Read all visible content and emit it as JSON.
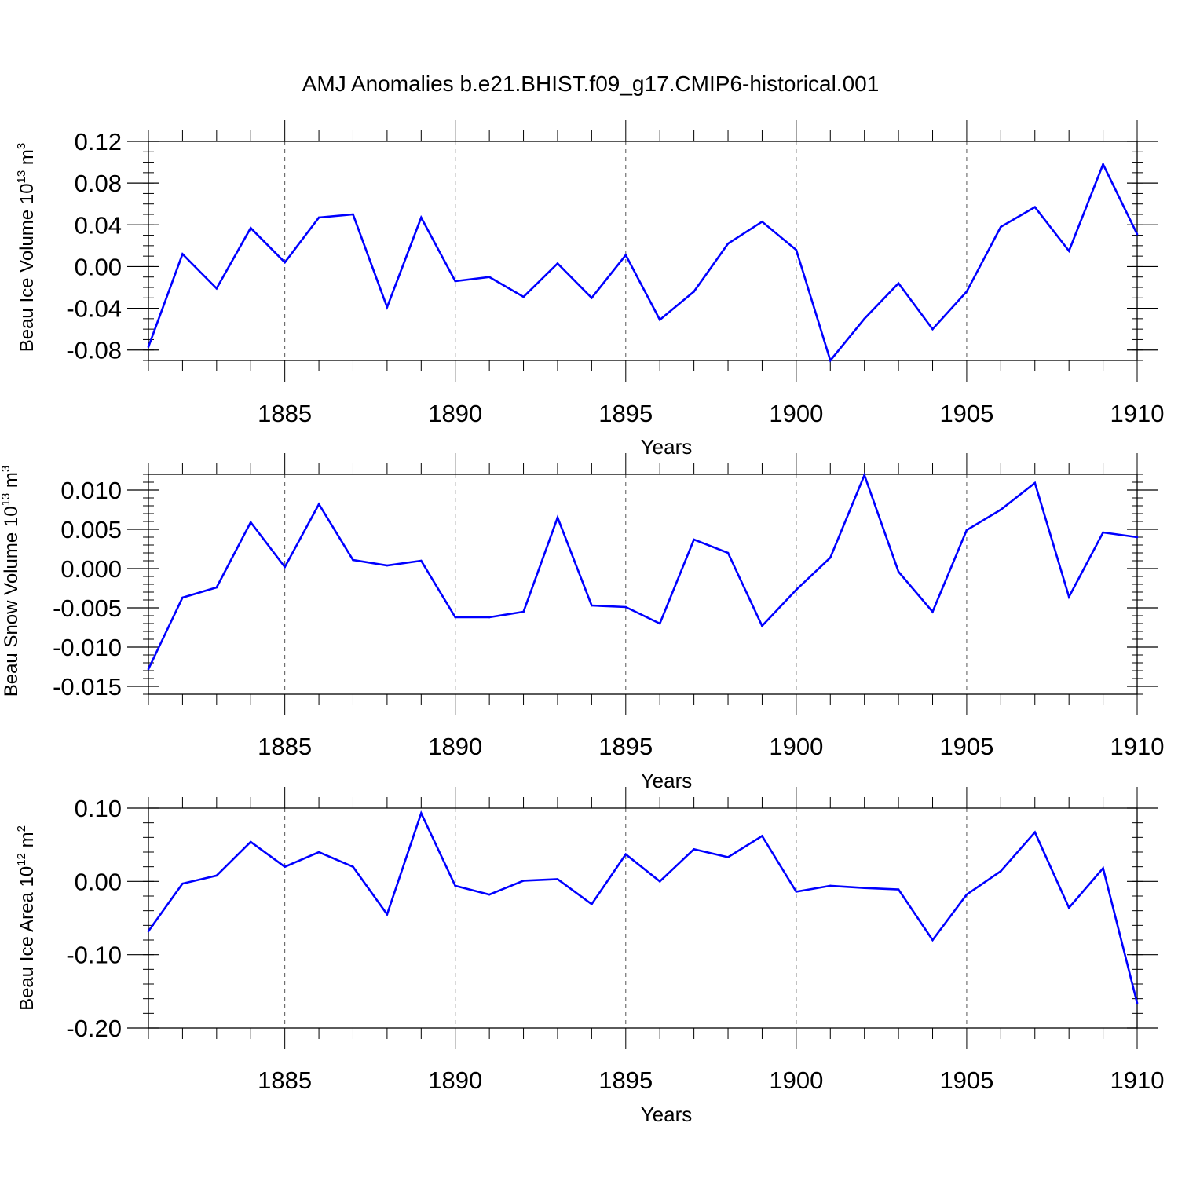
{
  "figure": {
    "title": "AMJ Anomalies b.e21.BHIST.f09_g17.CMIP6-historical.001"
  },
  "colors": {
    "line": "#0000ff",
    "axis": "#000000",
    "grid": "#555555"
  },
  "chart_data": [
    {
      "type": "line",
      "xlabel": "Years",
      "ylabel": {
        "text": "Beau Ice Volume 10",
        "sup1": "13",
        "mid": " m",
        "sup2": "3"
      },
      "xlim": [
        1881,
        1910
      ],
      "ylim": [
        -0.09,
        0.12
      ],
      "xticks": [
        1885,
        1890,
        1895,
        1900,
        1905,
        1910
      ],
      "yticks": [
        0.12,
        0.08,
        0.04,
        0.0,
        -0.04,
        -0.08
      ],
      "ytick_labels": [
        "0.12",
        "0.08",
        "0.04",
        "0.00",
        "-0.04",
        "-0.08"
      ],
      "yminor_step": 0.01,
      "x": [
        1881,
        1882,
        1883,
        1884,
        1885,
        1886,
        1887,
        1888,
        1889,
        1890,
        1891,
        1892,
        1893,
        1894,
        1895,
        1896,
        1897,
        1898,
        1899,
        1900,
        1901,
        1902,
        1903,
        1904,
        1905,
        1906,
        1907,
        1908,
        1909,
        1910
      ],
      "values": [
        -0.077,
        0.012,
        -0.021,
        0.037,
        0.004,
        0.047,
        0.05,
        -0.039,
        0.047,
        -0.014,
        -0.01,
        -0.029,
        0.003,
        -0.03,
        0.011,
        -0.051,
        -0.024,
        0.022,
        0.043,
        0.016,
        -0.09,
        -0.05,
        -0.016,
        -0.06,
        -0.024,
        0.038,
        0.057,
        0.015,
        0.098,
        0.031
      ]
    },
    {
      "type": "line",
      "xlabel": "Years",
      "ylabel": {
        "text": "Beau Snow Volume 10",
        "sup1": "13",
        "mid": " m",
        "sup2": "3"
      },
      "xlim": [
        1881,
        1910
      ],
      "ylim": [
        -0.016,
        0.012
      ],
      "xticks": [
        1885,
        1890,
        1895,
        1900,
        1905,
        1910
      ],
      "yticks": [
        0.01,
        0.005,
        0.0,
        -0.005,
        -0.01,
        -0.015
      ],
      "ytick_labels": [
        "0.010",
        "0.005",
        "0.000",
        "-0.005",
        "-0.010",
        "-0.015"
      ],
      "yminor_step": 0.001,
      "x": [
        1881,
        1882,
        1883,
        1884,
        1885,
        1886,
        1887,
        1888,
        1889,
        1890,
        1891,
        1892,
        1893,
        1894,
        1895,
        1896,
        1897,
        1898,
        1899,
        1900,
        1901,
        1902,
        1903,
        1904,
        1905,
        1906,
        1907,
        1908,
        1909,
        1910
      ],
      "values": [
        -0.0128,
        -0.0037,
        -0.0024,
        0.0059,
        0.0002,
        0.0082,
        0.0011,
        0.0004,
        0.001,
        -0.0062,
        -0.0062,
        -0.0055,
        0.0065,
        -0.0047,
        -0.0049,
        -0.007,
        0.0037,
        0.002,
        -0.0073,
        -0.0027,
        0.0014,
        0.0119,
        -0.0004,
        -0.0055,
        0.0049,
        0.0075,
        0.0109,
        -0.0036,
        0.0046,
        0.004
      ]
    },
    {
      "type": "line",
      "xlabel": "Years",
      "ylabel": {
        "text": "Beau Ice Area 10",
        "sup1": "12",
        "mid": " m",
        "sup2": "2"
      },
      "xlim": [
        1881,
        1910
      ],
      "ylim": [
        -0.2,
        0.1
      ],
      "xticks": [
        1885,
        1890,
        1895,
        1900,
        1905,
        1910
      ],
      "yticks": [
        0.1,
        0.0,
        -0.1,
        -0.2
      ],
      "ytick_labels": [
        "0.10",
        "0.00",
        "-0.10",
        "-0.20"
      ],
      "yminor_step": 0.02,
      "x": [
        1881,
        1882,
        1883,
        1884,
        1885,
        1886,
        1887,
        1888,
        1889,
        1890,
        1891,
        1892,
        1893,
        1894,
        1895,
        1896,
        1897,
        1898,
        1899,
        1900,
        1901,
        1902,
        1903,
        1904,
        1905,
        1906,
        1907,
        1908,
        1909,
        1910
      ],
      "values": [
        -0.068,
        -0.003,
        0.008,
        0.054,
        0.02,
        0.04,
        0.02,
        -0.045,
        0.093,
        -0.006,
        -0.018,
        0.001,
        0.003,
        -0.031,
        0.037,
        0.0,
        0.044,
        0.033,
        0.062,
        -0.014,
        -0.006,
        -0.009,
        -0.011,
        -0.08,
        -0.018,
        0.014,
        0.067,
        -0.036,
        0.018,
        -0.166
      ]
    }
  ]
}
